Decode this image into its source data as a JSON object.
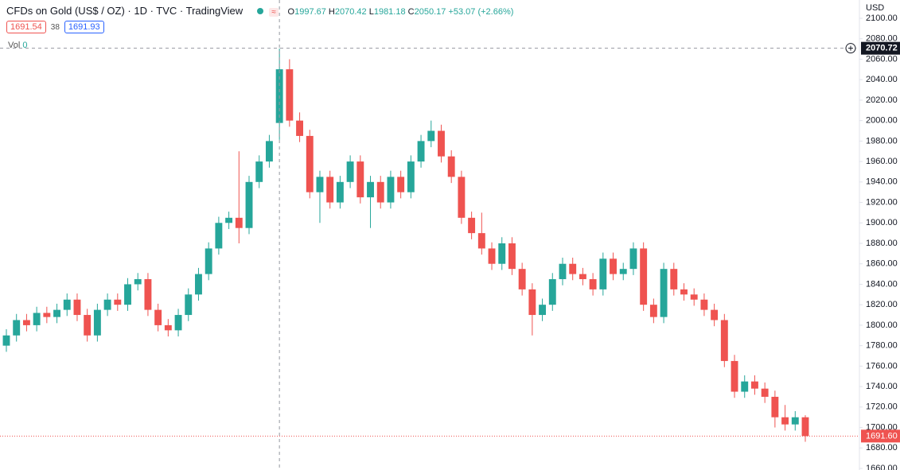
{
  "chart_data": {
    "type": "candlestick",
    "title": "CFDs on Gold (US$ / OZ) · 1D · TVC · TradingView",
    "ohlc_letters": [
      "O",
      "H",
      "L",
      "C"
    ],
    "change": "+53.07 (+2.66%)",
    "bid": 1691.54,
    "spread": 38,
    "ask": 1691.93,
    "volume_label": "Vol",
    "volume": 0,
    "currency": "USD",
    "crosshair_index": 27,
    "crosshair_price": 2070.72,
    "last_price": {
      "value": 1691.6,
      "label": "1691.60"
    },
    "up_color": "#26a69a",
    "down_color": "#ef5350",
    "grid": false,
    "ylim": [
      1660,
      2100
    ],
    "yticks": [
      {
        "value": 1660,
        "label": "1660.00"
      },
      {
        "value": 1680,
        "label": "1680.00"
      },
      {
        "value": 1700,
        "label": "1700.00"
      },
      {
        "value": 1720,
        "label": "1720.00"
      },
      {
        "value": 1740,
        "label": "1740.00"
      },
      {
        "value": 1760,
        "label": "1760.00"
      },
      {
        "value": 1780,
        "label": "1780.00"
      },
      {
        "value": 1800,
        "label": "1800.00"
      },
      {
        "value": 1820,
        "label": "1820.00"
      },
      {
        "value": 1840,
        "label": "1840.00"
      },
      {
        "value": 1860,
        "label": "1860.00"
      },
      {
        "value": 1880,
        "label": "1880.00"
      },
      {
        "value": 1900,
        "label": "1900.00"
      },
      {
        "value": 1920,
        "label": "1920.00"
      },
      {
        "value": 1940,
        "label": "1940.00"
      },
      {
        "value": 1960,
        "label": "1960.00"
      },
      {
        "value": 1980,
        "label": "1980.00"
      },
      {
        "value": 2000,
        "label": "2000.00"
      },
      {
        "value": 2020,
        "label": "2020.00"
      },
      {
        "value": 2040,
        "label": "2040.00"
      },
      {
        "value": 2060,
        "label": "2060.00"
      },
      {
        "value": 2080,
        "label": "2080.00"
      },
      {
        "value": 2100,
        "label": "2100.00"
      }
    ],
    "open": [
      1780,
      1790,
      1805,
      1800,
      1812,
      1808,
      1815,
      1825,
      1810,
      1790,
      1815,
      1825,
      1820,
      1840,
      1845,
      1815,
      1800,
      1795,
      1810,
      1830,
      1850,
      1875,
      1900,
      1905,
      1895,
      1940,
      1960,
      1997.67,
      2050.17,
      2000,
      1985,
      1930,
      1945,
      1920,
      1940,
      1960,
      1925,
      1940,
      1920,
      1945,
      1930,
      1960,
      1980,
      1990,
      1965,
      1945,
      1905,
      1890,
      1875,
      1860,
      1880,
      1855,
      1835,
      1810,
      1820,
      1845,
      1860,
      1850,
      1845,
      1835,
      1865,
      1850,
      1855,
      1875,
      1820,
      1808,
      1855,
      1835,
      1830,
      1825,
      1815,
      1805,
      1765,
      1735,
      1745,
      1738,
      1730,
      1710,
      1703,
      1710
    ],
    "high": [
      1796,
      1811,
      1811,
      1818,
      1818,
      1821,
      1831,
      1831,
      1816,
      1821,
      1831,
      1831,
      1846,
      1851,
      1851,
      1821,
      1806,
      1816,
      1836,
      1856,
      1881,
      1906,
      1911,
      1970,
      1946,
      1966,
      1986,
      2070.42,
      2060,
      2008,
      1991,
      1951,
      1951,
      1946,
      1966,
      1966,
      1946,
      1946,
      1951,
      1951,
      1966,
      1986,
      2000,
      1996,
      1971,
      1951,
      1911,
      1910,
      1881,
      1886,
      1886,
      1861,
      1841,
      1826,
      1851,
      1866,
      1866,
      1856,
      1851,
      1871,
      1871,
      1861,
      1881,
      1881,
      1826,
      1861,
      1861,
      1841,
      1836,
      1831,
      1821,
      1811,
      1771,
      1751,
      1751,
      1744,
      1736,
      1722,
      1716,
      1712
    ],
    "low": [
      1774,
      1784,
      1794,
      1794,
      1802,
      1802,
      1809,
      1804,
      1784,
      1784,
      1809,
      1814,
      1814,
      1834,
      1809,
      1794,
      1789,
      1789,
      1804,
      1824,
      1844,
      1869,
      1894,
      1880,
      1889,
      1934,
      1954,
      1981.18,
      1994,
      1979,
      1924,
      1900,
      1914,
      1914,
      1934,
      1919,
      1895,
      1914,
      1914,
      1924,
      1924,
      1954,
      1974,
      1959,
      1939,
      1899,
      1884,
      1869,
      1854,
      1854,
      1849,
      1829,
      1790,
      1804,
      1814,
      1839,
      1844,
      1839,
      1829,
      1829,
      1844,
      1844,
      1849,
      1814,
      1802,
      1802,
      1829,
      1824,
      1819,
      1809,
      1799,
      1759,
      1729,
      1729,
      1732,
      1724,
      1700,
      1697,
      1697,
      1686
    ],
    "close": [
      1790,
      1805,
      1800,
      1812,
      1808,
      1815,
      1825,
      1810,
      1790,
      1815,
      1825,
      1820,
      1840,
      1845,
      1815,
      1800,
      1795,
      1810,
      1830,
      1850,
      1875,
      1900,
      1905,
      1895,
      1940,
      1960,
      1980,
      2050.17,
      2000,
      1985,
      1930,
      1945,
      1920,
      1940,
      1960,
      1925,
      1940,
      1920,
      1945,
      1930,
      1960,
      1980,
      1990,
      1965,
      1945,
      1905,
      1890,
      1875,
      1860,
      1880,
      1855,
      1835,
      1810,
      1820,
      1845,
      1860,
      1850,
      1845,
      1835,
      1865,
      1850,
      1855,
      1875,
      1820,
      1808,
      1855,
      1835,
      1830,
      1825,
      1815,
      1805,
      1765,
      1735,
      1745,
      1738,
      1730,
      1710,
      1703,
      1710,
      1691.6
    ]
  }
}
